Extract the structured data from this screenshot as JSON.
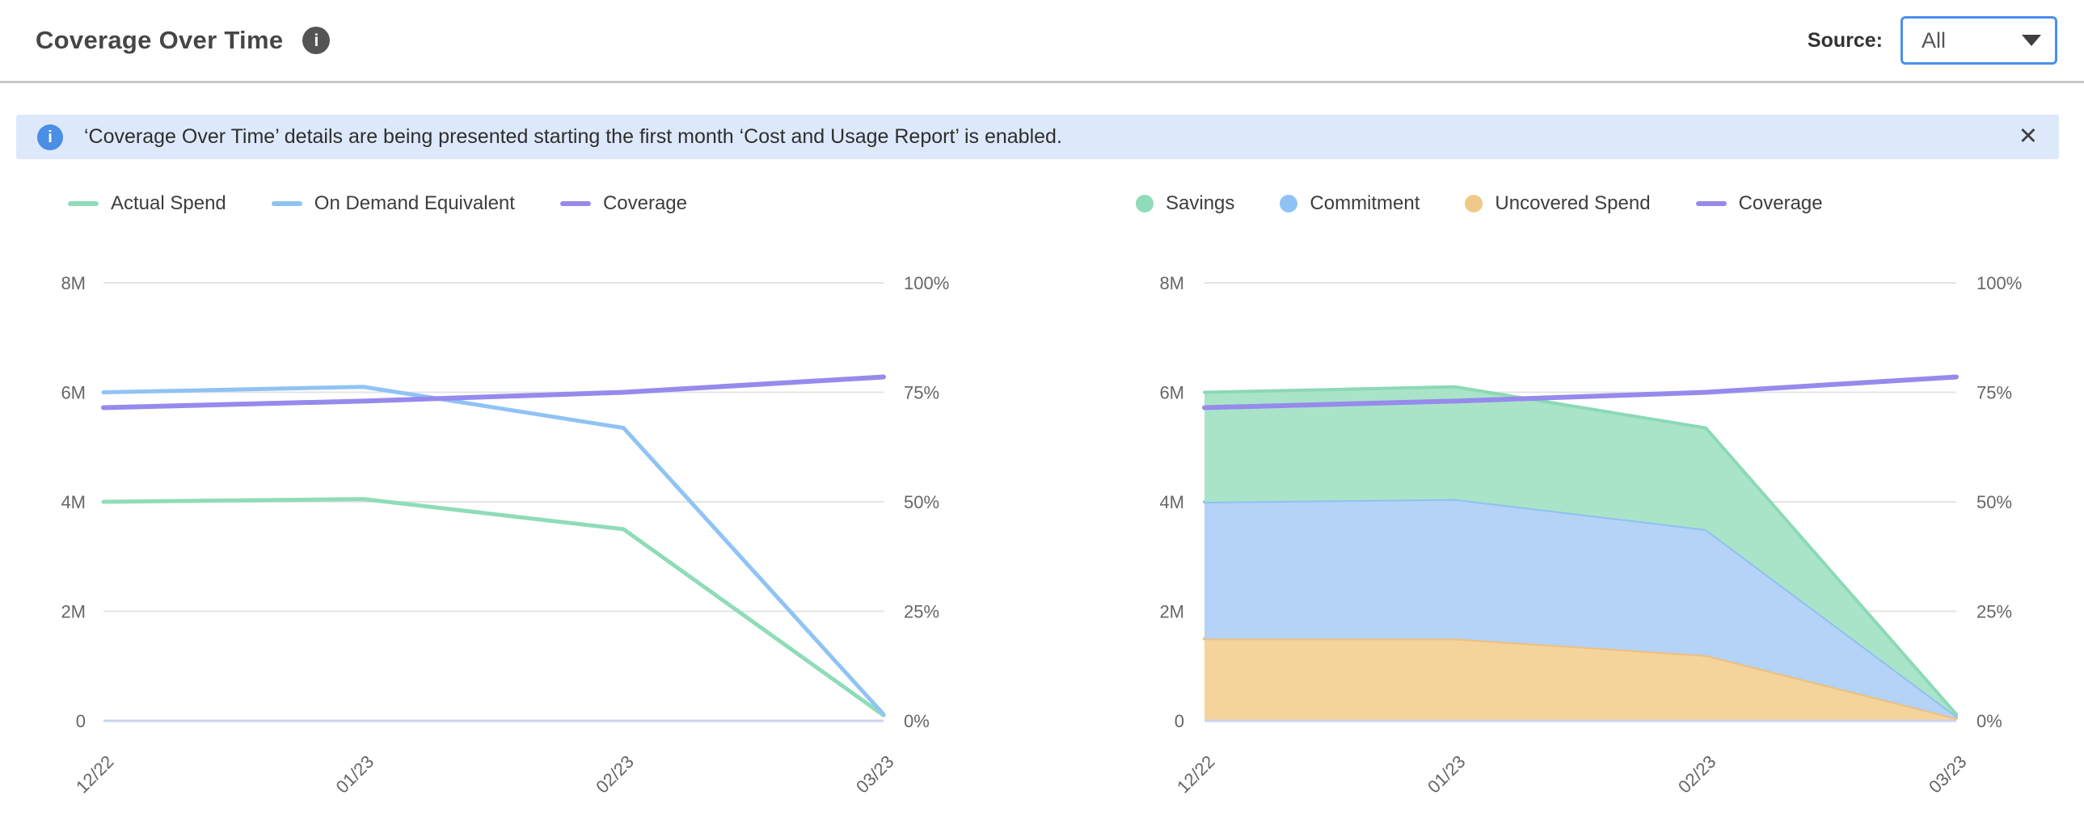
{
  "header": {
    "title": "Coverage Over Time",
    "info_icon": "i",
    "source_label": "Source:",
    "source_value": "All"
  },
  "banner": {
    "info_icon": "i",
    "text": "‘Coverage Over Time’ details are being presented starting the first month ‘Cost and Usage Report’ is enabled.",
    "close_icon": "✕"
  },
  "colors": {
    "accent_blue": "#4a8ff0",
    "banner_bg": "#dde9fb",
    "banner_icon_blue": "#4a8ee6",
    "divider_gray": "#c9c9c9",
    "gridline": "#e4e4e4",
    "axis_baseline": "#c9d3ee",
    "green": "#8edcb8",
    "green_fill": "#a9e4c9",
    "blue": "#90c3f5",
    "blue_fill": "#b5d2f7",
    "orange": "#edc07b",
    "orange_fill": "#f5d49c",
    "purple": "#968aec"
  },
  "chart_data": [
    {
      "type": "line",
      "title": "",
      "x": [
        "12/22",
        "01/23",
        "02/23",
        "03/23"
      ],
      "values_unit": "millions (left axis M = millions, right axis = %)",
      "left_axis": {
        "ticks": [
          "8M",
          "6M",
          "4M",
          "2M",
          "0"
        ],
        "max": 8,
        "min": 0
      },
      "right_axis": {
        "ticks": [
          "100%",
          "75%",
          "50%",
          "25%",
          "0%"
        ],
        "max": 100,
        "min": 0
      },
      "grid": true,
      "legend_position": "top-left",
      "series": [
        {
          "name": "Actual Spend",
          "kind": "line",
          "axis": "left",
          "color": "#8edcb8",
          "width": 5,
          "values": [
            4.0,
            4.05,
            3.5,
            0.1
          ]
        },
        {
          "name": "On Demand Equivalent",
          "kind": "line",
          "axis": "left",
          "color": "#90c3f5",
          "width": 5,
          "values": [
            6.0,
            6.1,
            5.35,
            0.12
          ]
        },
        {
          "name": "Coverage",
          "kind": "line",
          "axis": "right",
          "color": "#968aec",
          "width": 6,
          "values": [
            71.5,
            73,
            75,
            78.5
          ]
        }
      ],
      "legend": [
        {
          "label": "Actual Spend",
          "swatch": "dash",
          "color": "#8edcb8"
        },
        {
          "label": "On Demand Equivalent",
          "swatch": "dash",
          "color": "#90c3f5"
        },
        {
          "label": "Coverage",
          "swatch": "dash",
          "color": "#968aec"
        }
      ]
    },
    {
      "type": "area",
      "stacked": true,
      "title": "",
      "x": [
        "12/22",
        "01/23",
        "02/23",
        "03/23"
      ],
      "values_unit": "millions (left axis M = millions, right axis = %)",
      "left_axis": {
        "ticks": [
          "8M",
          "6M",
          "4M",
          "2M",
          "0"
        ],
        "max": 8,
        "min": 0
      },
      "right_axis": {
        "ticks": [
          "100%",
          "75%",
          "50%",
          "25%",
          "0%"
        ],
        "max": 100,
        "min": 0
      },
      "grid": true,
      "legend_position": "top-left",
      "series": [
        {
          "name": "Uncovered Spend",
          "kind": "area",
          "axis": "left",
          "fill": "#f5d49c",
          "stroke": "#edc07b",
          "values": [
            1.5,
            1.5,
            1.2,
            0.05
          ]
        },
        {
          "name": "Commitment",
          "kind": "area",
          "axis": "left",
          "fill": "#b5d2f7",
          "stroke": "#8fc0f2",
          "values": [
            2.5,
            2.55,
            2.3,
            0.04
          ]
        },
        {
          "name": "Savings",
          "kind": "area",
          "axis": "left",
          "fill": "#a9e4c9",
          "stroke": "#8bd9b5",
          "values": [
            2.0,
            2.05,
            1.85,
            0.03
          ]
        },
        {
          "name": "Coverage",
          "kind": "line",
          "axis": "right",
          "color": "#968aec",
          "width": 6,
          "values": [
            71.5,
            73,
            75,
            78.5
          ]
        }
      ],
      "stack_totals_note": "stack tops: uncovered=1.5/1.5/1.2/0.05, +commitment=4.0/4.05/3.5/0.09, +savings=6.0/6.1/5.35/0.12",
      "legend": [
        {
          "label": "Savings",
          "swatch": "dot",
          "color": "#8edcb8"
        },
        {
          "label": "Commitment",
          "swatch": "dot",
          "color": "#90c3f5"
        },
        {
          "label": "Uncovered Spend",
          "swatch": "dot",
          "color": "#f0c988"
        },
        {
          "label": "Coverage",
          "swatch": "dash",
          "color": "#968aec"
        }
      ]
    }
  ]
}
